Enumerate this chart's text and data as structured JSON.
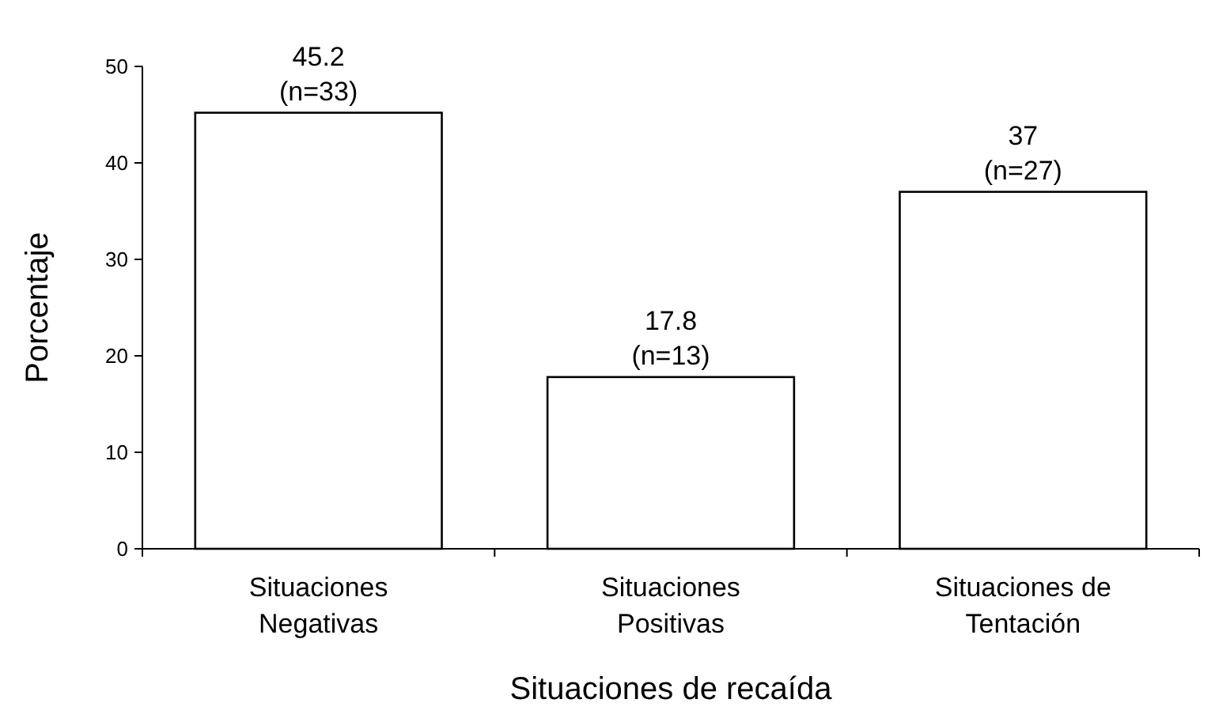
{
  "chart_data": {
    "type": "bar",
    "xlabel": "Situaciones de recaída",
    "ylabel": "Porcentaje",
    "categories": [
      "Situaciones\nNegativas",
      "Situaciones\nPositivas",
      "Situaciones de\nTentación"
    ],
    "values": [
      45.2,
      17.8,
      37
    ],
    "value_labels": [
      "45.2\n(n=33)",
      "17.8\n(n=13)",
      "37\n(n=27)"
    ],
    "color": "#ffffff",
    "ylim": [
      0,
      50
    ],
    "yticks": [
      0,
      10,
      20,
      30,
      40,
      50
    ],
    "grid": false
  }
}
